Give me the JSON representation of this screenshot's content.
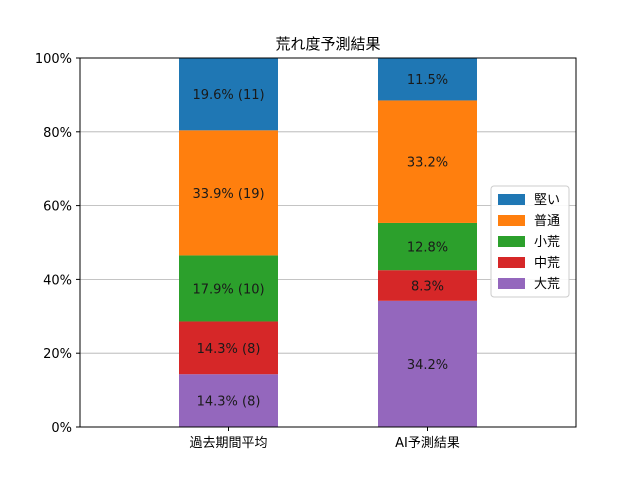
{
  "chart_data": {
    "type": "bar",
    "stacked": true,
    "title": "荒れ度予測結果",
    "xlabel": "",
    "ylabel": "",
    "ylim": [
      0,
      100
    ],
    "y_tick_values": [
      0,
      20,
      40,
      60,
      80,
      100
    ],
    "y_tick_labels": [
      "0%",
      "20%",
      "40%",
      "60%",
      "80%",
      "100%"
    ],
    "grid": "horizontal",
    "legend_position": "right",
    "categories": [
      "過去期間平均",
      "AI予測結果"
    ],
    "series": [
      {
        "name": "大荒",
        "color": "#9467bd",
        "values": [
          14.3,
          34.2
        ],
        "labels": [
          "14.3% (8)",
          "34.2%"
        ]
      },
      {
        "name": "中荒",
        "color": "#d62728",
        "values": [
          14.3,
          8.3
        ],
        "labels": [
          "14.3% (8)",
          "8.3%"
        ]
      },
      {
        "name": "小荒",
        "color": "#2ca02c",
        "values": [
          17.9,
          12.8
        ],
        "labels": [
          "17.9% (10)",
          "12.8%"
        ]
      },
      {
        "name": "普通",
        "color": "#ff7f0e",
        "values": [
          33.9,
          33.2
        ],
        "labels": [
          "33.9% (19)",
          "33.2%"
        ]
      },
      {
        "name": "堅い",
        "color": "#1f77b4",
        "values": [
          19.6,
          11.5
        ],
        "labels": [
          "19.6% (11)",
          "11.5%"
        ]
      }
    ],
    "legend_order": [
      "堅い",
      "普通",
      "小荒",
      "中荒",
      "大荒"
    ]
  }
}
